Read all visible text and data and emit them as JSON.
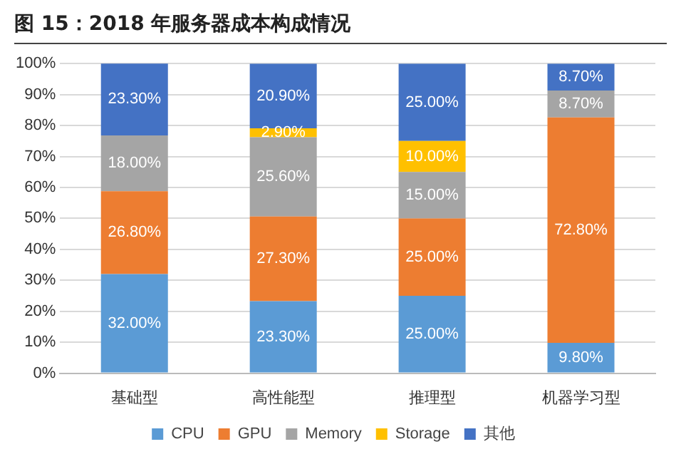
{
  "chart_data": {
    "type": "bar",
    "title": "图 15：2018 年服务器成本构成情况",
    "categories": [
      "基础型",
      "高性能型",
      "推理型",
      "机器学习型"
    ],
    "stacked": true,
    "series": [
      {
        "name": "CPU",
        "color": "#5b9bd5",
        "values": [
          32.0,
          23.3,
          25.0,
          9.8
        ],
        "value_labels": [
          "32.00%",
          "23.30%",
          "25.00%",
          "9.80%"
        ]
      },
      {
        "name": "GPU",
        "color": "#ed7d31",
        "values": [
          26.8,
          27.3,
          25.0,
          72.8
        ],
        "value_labels": [
          "26.80%",
          "27.30%",
          "25.00%",
          "72.80%"
        ]
      },
      {
        "name": "Memory",
        "color": "#a5a5a5",
        "values": [
          18.0,
          25.6,
          15.0,
          8.7
        ],
        "value_labels": [
          "18.00%",
          "25.60%",
          "15.00%",
          "8.70%"
        ]
      },
      {
        "name": "Storage",
        "color": "#ffc000",
        "values": [
          null,
          2.9,
          10.0,
          null
        ],
        "value_labels": [
          null,
          "2.90%",
          "10.00%",
          null
        ]
      },
      {
        "name": "其他",
        "color": "#4472c4",
        "values": [
          23.3,
          20.9,
          25.0,
          8.7
        ],
        "value_labels": [
          "23.30%",
          "20.90%",
          "25.00%",
          "8.70%"
        ]
      }
    ],
    "ylim": [
      0,
      100
    ],
    "yticks": [
      {
        "value": 0,
        "label": "0%"
      },
      {
        "value": 10,
        "label": "10%"
      },
      {
        "value": 20,
        "label": "20%"
      },
      {
        "value": 30,
        "label": "30%"
      },
      {
        "value": 40,
        "label": "40%"
      },
      {
        "value": 50,
        "label": "50%"
      },
      {
        "value": 60,
        "label": "60%"
      },
      {
        "value": 70,
        "label": "70%"
      },
      {
        "value": 80,
        "label": "80%"
      },
      {
        "value": 90,
        "label": "90%"
      },
      {
        "value": 100,
        "label": "100%"
      }
    ],
    "grid": "y",
    "legend": "bottom"
  }
}
